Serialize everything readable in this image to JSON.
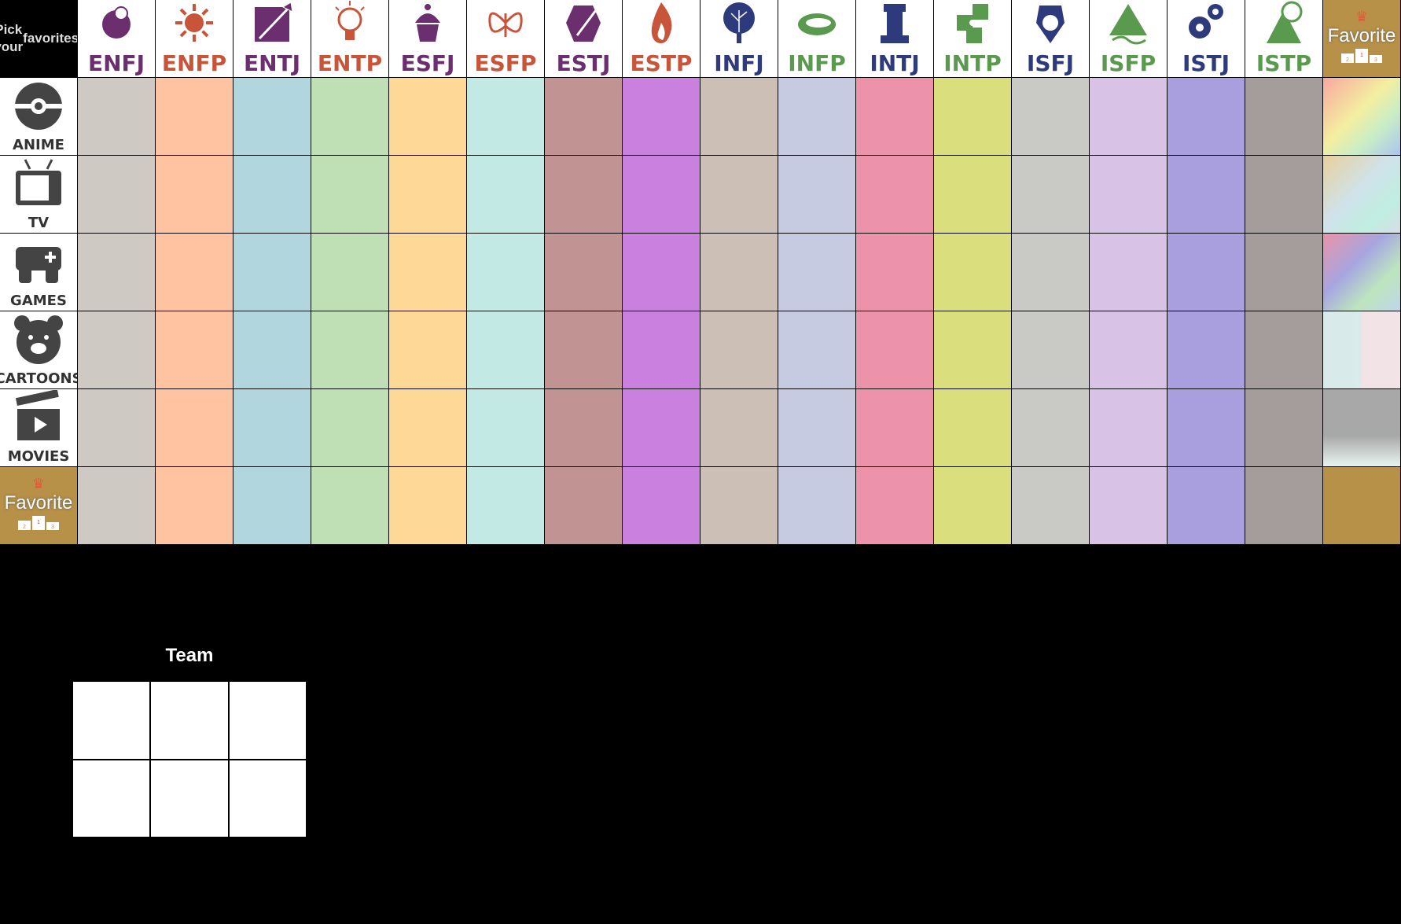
{
  "prompt": [
    "Pick your",
    "favorites!"
  ],
  "types": [
    {
      "code": "ENFJ",
      "color": "#6b2e6e",
      "fill": "#cfc9c4",
      "icon": "flower-icon"
    },
    {
      "code": "ENFP",
      "color": "#c8553a",
      "fill": "#ffc3a1",
      "icon": "sun-icon"
    },
    {
      "code": "ENTJ",
      "color": "#6b2e6e",
      "fill": "#b1d6de",
      "icon": "arrow-icon"
    },
    {
      "code": "ENTP",
      "color": "#c8553a",
      "fill": "#bfe0b4",
      "icon": "lightbulb-icon"
    },
    {
      "code": "ESFJ",
      "color": "#6b2e6e",
      "fill": "#fdd897",
      "icon": "cupcake-icon"
    },
    {
      "code": "ESFP",
      "color": "#c8553a",
      "fill": "#c3e9e4",
      "icon": "butterfly-icon"
    },
    {
      "code": "ESTJ",
      "color": "#6b2e6e",
      "fill": "#c19393",
      "icon": "hammer-icon"
    },
    {
      "code": "ESTP",
      "color": "#c8553a",
      "fill": "#c980df",
      "icon": "fire-icon"
    },
    {
      "code": "INFJ",
      "color": "#2d3a7c",
      "fill": "#ccbfb6",
      "icon": "tree-icon"
    },
    {
      "code": "INFP",
      "color": "#5a9a4f",
      "fill": "#c7cbe2",
      "icon": "cloud-icon"
    },
    {
      "code": "INTJ",
      "color": "#2d3a7c",
      "fill": "#ec93ab",
      "icon": "rook-icon"
    },
    {
      "code": "INTP",
      "color": "#5a9a4f",
      "fill": "#dbde7c",
      "icon": "puzzle-icon"
    },
    {
      "code": "ISFJ",
      "color": "#2d3a7c",
      "fill": "#c9cac5",
      "icon": "shield-icon"
    },
    {
      "code": "ISFP",
      "color": "#5a9a4f",
      "fill": "#d8c3e6",
      "icon": "mountain-icon"
    },
    {
      "code": "ISTJ",
      "color": "#2d3a7c",
      "fill": "#a99ede",
      "icon": "gear-icon"
    },
    {
      "code": "ISTP",
      "color": "#5a9a4f",
      "fill": "#a59d9b",
      "icon": "magnifier-icon"
    }
  ],
  "favorite_label": "Favorite",
  "podium": [
    "2",
    "1",
    "3"
  ],
  "categories": [
    {
      "label": "ANIME",
      "icon": "pokeball-icon"
    },
    {
      "label": "TV",
      "icon": "tv-icon"
    },
    {
      "label": "GAMES",
      "icon": "gamepad-icon"
    },
    {
      "label": "CARTOONS",
      "icon": "bear-icon"
    },
    {
      "label": "MOVIES",
      "icon": "clapperboard-icon"
    }
  ],
  "team": {
    "title": "Team"
  }
}
